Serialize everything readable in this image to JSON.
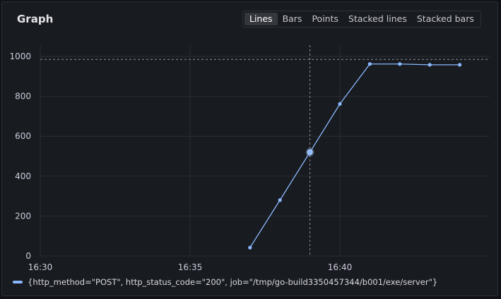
{
  "panel": {
    "title": "Graph"
  },
  "view_modes": [
    {
      "label": "Lines",
      "active": true
    },
    {
      "label": "Bars",
      "active": false
    },
    {
      "label": "Points",
      "active": false
    },
    {
      "label": "Stacked lines",
      "active": false
    },
    {
      "label": "Stacked bars",
      "active": false
    }
  ],
  "colors": {
    "series": "#8ab8ff",
    "background": "#181b1f",
    "grid": "#2a2d33"
  },
  "chart_data": {
    "type": "line",
    "x_unit": "time HH:MM",
    "x_ticks": [
      "16:30",
      "16:35",
      "16:40"
    ],
    "y_ticks": [
      "0",
      "200",
      "400",
      "600",
      "800",
      "1000"
    ],
    "xlim": [
      "16:30",
      "16:45"
    ],
    "ylim": [
      0,
      1050
    ],
    "grid": true,
    "series": [
      {
        "name": "{http_method=\"POST\", http_status_code=\"200\", job=\"/tmp/go-build3350457344/b001/exe/server\"}",
        "x": [
          "16:37",
          "16:38",
          "16:39",
          "16:40",
          "16:41",
          "16:42",
          "16:43",
          "16:44"
        ],
        "y": [
          42,
          280,
          520,
          762,
          962,
          962,
          958,
          958
        ]
      }
    ],
    "crosshair": {
      "x": "16:39",
      "y": 985
    },
    "highlighted_point": {
      "x": "16:39",
      "y": 520
    },
    "legend": "bottom-left"
  }
}
